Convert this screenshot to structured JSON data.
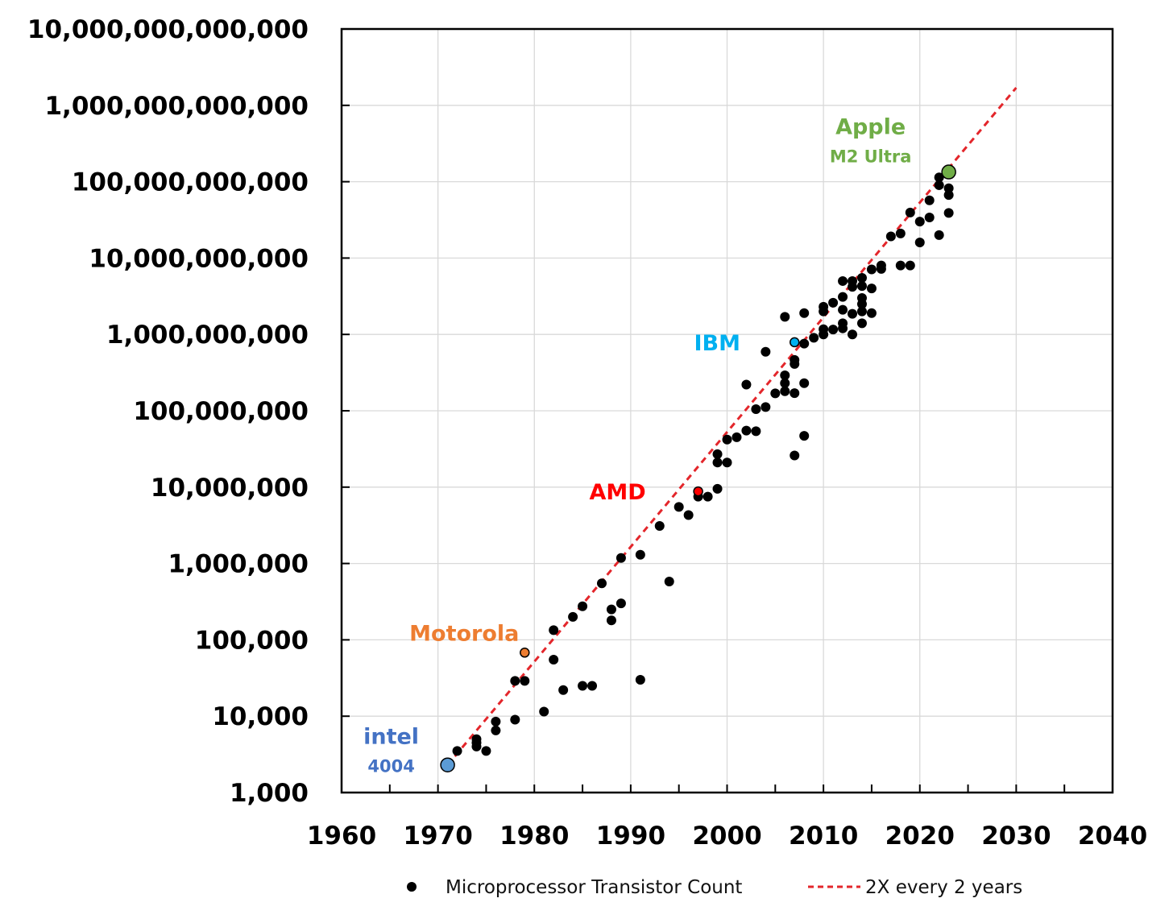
{
  "chart_data": {
    "type": "scatter",
    "title": "",
    "xlabel": "",
    "ylabel": "",
    "xlim": [
      1960,
      2040
    ],
    "ylim": [
      1000,
      10000000000000
    ],
    "y_scale": "log",
    "x_ticks": [
      "1960",
      "1970",
      "1980",
      "1990",
      "2000",
      "2010",
      "2020",
      "2030",
      "2040"
    ],
    "y_ticks": [
      "1,000",
      "10,000",
      "100,000",
      "1,000,000",
      "10,000,000",
      "100,000,000",
      "1,000,000,000",
      "10,000,000,000",
      "100,000,000,000",
      "1,000,000,000,000",
      "10,000,000,000,000"
    ],
    "grid": true,
    "legend_position": "bottom",
    "series": [
      {
        "name": "Microprocessor Transistor Count",
        "kind": "scatter",
        "color": "#000000",
        "points": [
          [
            1972,
            3500
          ],
          [
            1974,
            4500
          ],
          [
            1974,
            5000
          ],
          [
            1974,
            4000
          ],
          [
            1975,
            3500
          ],
          [
            1976,
            6500
          ],
          [
            1976,
            8500
          ],
          [
            1978,
            9000
          ],
          [
            1978,
            29000
          ],
          [
            1979,
            29000
          ],
          [
            1981,
            11500
          ],
          [
            1982,
            55000
          ],
          [
            1982,
            134000
          ],
          [
            1983,
            22000
          ],
          [
            1984,
            200000
          ],
          [
            1985,
            275000
          ],
          [
            1985,
            25000
          ],
          [
            1986,
            25000
          ],
          [
            1987,
            550000
          ],
          [
            1988,
            250000
          ],
          [
            1988,
            180000
          ],
          [
            1989,
            1180000
          ],
          [
            1989,
            300000
          ],
          [
            1991,
            1300000
          ],
          [
            1991,
            30000
          ],
          [
            1993,
            3100000
          ],
          [
            1994,
            580000
          ],
          [
            1995,
            5500000
          ],
          [
            1996,
            4300000
          ],
          [
            1997,
            7500000
          ],
          [
            1998,
            7500000
          ],
          [
            1999,
            9500000
          ],
          [
            1999,
            21000000
          ],
          [
            1999,
            27000000
          ],
          [
            2000,
            21000000
          ],
          [
            2000,
            42000000
          ],
          [
            2001,
            45000000
          ],
          [
            2002,
            55000000
          ],
          [
            2002,
            220000000
          ],
          [
            2003,
            105000000
          ],
          [
            2003,
            54000000
          ],
          [
            2004,
            592000000
          ],
          [
            2004,
            112000000
          ],
          [
            2005,
            169000000
          ],
          [
            2006,
            1700000000
          ],
          [
            2006,
            291000000
          ],
          [
            2006,
            230000000
          ],
          [
            2006,
            180000000
          ],
          [
            2007,
            410000000
          ],
          [
            2007,
            463000000
          ],
          [
            2007,
            170000000
          ],
          [
            2007,
            26000000
          ],
          [
            2008,
            1900000000
          ],
          [
            2008,
            758000000
          ],
          [
            2008,
            230000000
          ],
          [
            2008,
            47000000
          ],
          [
            2009,
            904000000
          ],
          [
            2010,
            2300000000
          ],
          [
            2010,
            1170000000
          ],
          [
            2010,
            2000000000
          ],
          [
            2010,
            1000000000
          ],
          [
            2011,
            2600000000
          ],
          [
            2011,
            1160000000
          ],
          [
            2012,
            5000000000
          ],
          [
            2012,
            3100000000
          ],
          [
            2012,
            2100000000
          ],
          [
            2012,
            1400000000
          ],
          [
            2012,
            1200000000
          ],
          [
            2013,
            5000000000
          ],
          [
            2013,
            4200000000
          ],
          [
            2013,
            1860000000
          ],
          [
            2013,
            1000000000
          ],
          [
            2014,
            5500000000
          ],
          [
            2014,
            4300000000
          ],
          [
            2014,
            3000000000
          ],
          [
            2014,
            2500000000
          ],
          [
            2014,
            2000000000
          ],
          [
            2014,
            1400000000
          ],
          [
            2015,
            7100000000
          ],
          [
            2015,
            4000000000
          ],
          [
            2015,
            1900000000
          ],
          [
            2016,
            8000000000
          ],
          [
            2016,
            7200000000
          ],
          [
            2017,
            19200000000
          ],
          [
            2018,
            21000000000
          ],
          [
            2018,
            8000000000
          ],
          [
            2019,
            8000000000
          ],
          [
            2019,
            39500000000
          ],
          [
            2020,
            30000000000
          ],
          [
            2020,
            16000000000
          ],
          [
            2021,
            57000000000
          ],
          [
            2021,
            34000000000
          ],
          [
            2022,
            114000000000
          ],
          [
            2022,
            90000000000
          ],
          [
            2022,
            20000000000
          ],
          [
            2023,
            82000000000
          ],
          [
            2023,
            67000000000
          ],
          [
            2023,
            39000000000
          ]
        ]
      },
      {
        "name": "2X every 2 years",
        "kind": "line",
        "color": "#e3262b",
        "dashed": true,
        "x": [
          1971,
          2030
        ],
        "y": [
          2300,
          1700000000000
        ]
      }
    ],
    "highlights": [
      {
        "label": "intel",
        "sublabel": "4004",
        "x": 1971,
        "y": 2300,
        "color": "#4472c4",
        "marker_fill": "#5b9bd5"
      },
      {
        "label": "Motorola",
        "sublabel": "",
        "x": 1979,
        "y": 68000,
        "color": "#ed7d31",
        "marker_fill": "#ed7d31"
      },
      {
        "label": "AMD",
        "sublabel": "",
        "x": 1997,
        "y": 8800000,
        "color": "#ff0000",
        "marker_fill": "#ff0000"
      },
      {
        "label": "IBM",
        "sublabel": "",
        "x": 2007,
        "y": 790000000,
        "color": "#00b0f0",
        "marker_fill": "#00b0f0"
      },
      {
        "label": "Apple",
        "sublabel": "M2 Ultra",
        "x": 2023,
        "y": 134000000000,
        "color": "#70ad47",
        "marker_fill": "#70ad47"
      }
    ],
    "legend": [
      {
        "label": "Microprocessor Transistor Count",
        "marker": "dot"
      },
      {
        "label": "2X every 2 years",
        "marker": "dashed-line"
      }
    ]
  }
}
